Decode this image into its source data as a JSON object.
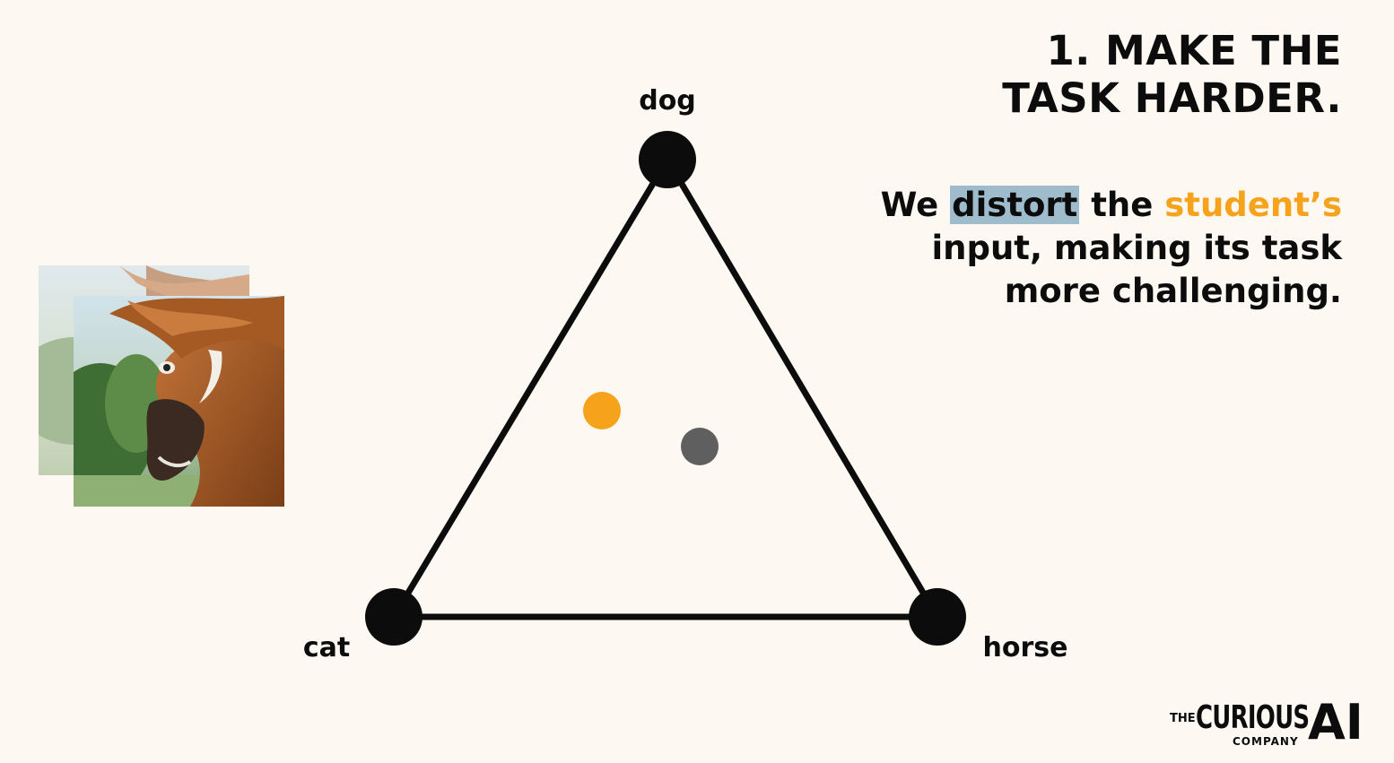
{
  "title": {
    "line1": "1. MAKE THE",
    "line2": "TASK HARDER."
  },
  "subtitle": {
    "line1_pre": "We ",
    "line1_highlight": "distort",
    "line1_mid": " the ",
    "line1_accent": "student’s",
    "line2": "input, making its task",
    "line3": "more challenging."
  },
  "diagram": {
    "vertices": [
      "dog",
      "cat",
      "horse"
    ],
    "points": [
      {
        "name": "student-prediction",
        "color": "#f7a21b"
      },
      {
        "name": "teacher-prediction",
        "color": "#5f5f5f"
      }
    ]
  },
  "colors": {
    "background": "#fdf8f2",
    "accent": "#f7a21b",
    "highlight": "#9fbccc",
    "ink": "#0c0c0c"
  },
  "images": {
    "photo_subject": "horse"
  },
  "logo": {
    "the": "THE",
    "curious": "CURIOUS",
    "company": "COMPANY",
    "ai": "AI"
  }
}
